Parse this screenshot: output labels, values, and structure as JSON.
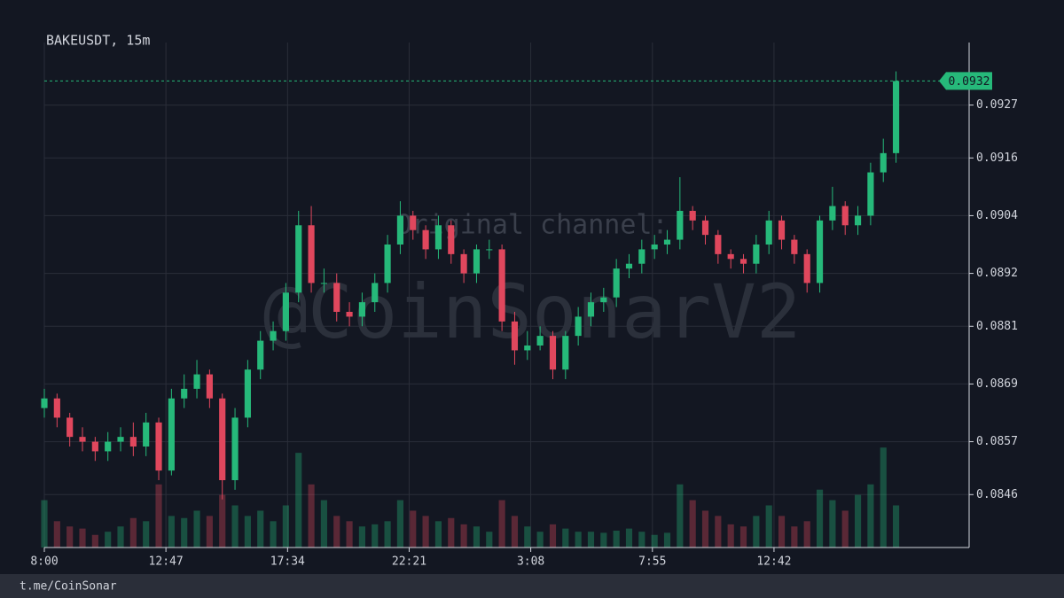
{
  "chart_data": {
    "type": "candlestick",
    "title": "BAKEUSDT, 15m",
    "watermark": "@CoinSonarV2",
    "watermark_caption": "Original channel:",
    "footer": "t.me/CoinSonar",
    "up_color": "#26b97a",
    "down_color": "#e0475d",
    "x": [
      0,
      2,
      4,
      6,
      8,
      10,
      12,
      14,
      16,
      18,
      20,
      22,
      24,
      26,
      28,
      30,
      32,
      34,
      36,
      38,
      40,
      42,
      44,
      46,
      48,
      50,
      52,
      54,
      56,
      58,
      60,
      62,
      64,
      66,
      68,
      70,
      72,
      74,
      76,
      78,
      80,
      82,
      84,
      86,
      88,
      90,
      92,
      94,
      96,
      98,
      100,
      102,
      104,
      106,
      108,
      110,
      112,
      114,
      116,
      118,
      120,
      122,
      124,
      126,
      128,
      130,
      132,
      134
    ],
    "open": [
      0.0864,
      0.0866,
      0.0862,
      0.0858,
      0.0857,
      0.0855,
      0.0857,
      0.0858,
      0.0856,
      0.0861,
      0.0851,
      0.0866,
      0.0868,
      0.0871,
      0.0866,
      0.0849,
      0.0862,
      0.0872,
      0.0878,
      0.088,
      0.0888,
      0.0902,
      0.089,
      0.089,
      0.0884,
      0.0883,
      0.0886,
      0.089,
      0.0898,
      0.0904,
      0.0901,
      0.0897,
      0.0902,
      0.0896,
      0.0892,
      0.0897,
      0.0897,
      0.0882,
      0.0876,
      0.0877,
      0.0879,
      0.0872,
      0.0879,
      0.0883,
      0.0886,
      0.0887,
      0.0893,
      0.0894,
      0.0897,
      0.0898,
      0.0899,
      0.0905,
      0.0903,
      0.09,
      0.0896,
      0.0895,
      0.0894,
      0.0898,
      0.0903,
      0.0899,
      0.0896,
      0.089,
      0.0903,
      0.0906,
      0.0902,
      0.0904,
      0.0913,
      0.0917
    ],
    "high": [
      0.0868,
      0.0867,
      0.0863,
      0.086,
      0.0858,
      0.0859,
      0.086,
      0.0861,
      0.0863,
      0.0862,
      0.0868,
      0.0871,
      0.0874,
      0.0872,
      0.0867,
      0.0864,
      0.0874,
      0.088,
      0.0882,
      0.089,
      0.0905,
      0.0906,
      0.0893,
      0.0892,
      0.0886,
      0.0888,
      0.0892,
      0.09,
      0.0907,
      0.0905,
      0.0902,
      0.0904,
      0.0903,
      0.0897,
      0.0898,
      0.0899,
      0.0898,
      0.0884,
      0.088,
      0.0881,
      0.088,
      0.088,
      0.0885,
      0.0888,
      0.0889,
      0.0895,
      0.0896,
      0.0899,
      0.09,
      0.0901,
      0.0912,
      0.0906,
      0.0904,
      0.0901,
      0.0897,
      0.0896,
      0.09,
      0.0905,
      0.0904,
      0.09,
      0.0897,
      0.0904,
      0.091,
      0.0907,
      0.0906,
      0.0915,
      0.092,
      0.0934
    ],
    "low": [
      0.0862,
      0.086,
      0.0856,
      0.0855,
      0.0853,
      0.0853,
      0.0855,
      0.0854,
      0.0854,
      0.0849,
      0.085,
      0.0864,
      0.0866,
      0.0864,
      0.0845,
      0.0847,
      0.086,
      0.087,
      0.0876,
      0.0878,
      0.0886,
      0.0888,
      0.0888,
      0.0882,
      0.0881,
      0.0881,
      0.0884,
      0.0888,
      0.0896,
      0.0899,
      0.0895,
      0.0895,
      0.0894,
      0.089,
      0.089,
      0.0895,
      0.088,
      0.0873,
      0.0874,
      0.0876,
      0.087,
      0.087,
      0.0877,
      0.0881,
      0.0884,
      0.0885,
      0.0891,
      0.0892,
      0.0895,
      0.0896,
      0.0897,
      0.0901,
      0.0898,
      0.0894,
      0.0893,
      0.0892,
      0.0892,
      0.0896,
      0.0897,
      0.0894,
      0.0888,
      0.0888,
      0.0901,
      0.09,
      0.09,
      0.0902,
      0.0911,
      0.0915
    ],
    "close": [
      0.0866,
      0.0862,
      0.0858,
      0.0857,
      0.0855,
      0.0857,
      0.0858,
      0.0856,
      0.0861,
      0.0851,
      0.0866,
      0.0868,
      0.0871,
      0.0866,
      0.0849,
      0.0862,
      0.0872,
      0.0878,
      0.088,
      0.0888,
      0.0902,
      0.089,
      0.089,
      0.0884,
      0.0883,
      0.0886,
      0.089,
      0.0898,
      0.0904,
      0.0901,
      0.0897,
      0.0902,
      0.0896,
      0.0892,
      0.0897,
      0.0897,
      0.0882,
      0.0876,
      0.0877,
      0.0879,
      0.0872,
      0.0879,
      0.0883,
      0.0886,
      0.0887,
      0.0893,
      0.0894,
      0.0897,
      0.0898,
      0.0899,
      0.0905,
      0.0903,
      0.09,
      0.0896,
      0.0895,
      0.0894,
      0.0898,
      0.0903,
      0.0899,
      0.0896,
      0.089,
      0.0903,
      0.0906,
      0.0902,
      0.0904,
      0.0913,
      0.0917,
      0.0932
    ],
    "volume": [
      45,
      25,
      20,
      18,
      12,
      15,
      20,
      28,
      25,
      60,
      30,
      28,
      35,
      30,
      50,
      40,
      30,
      35,
      25,
      40,
      90,
      60,
      45,
      30,
      25,
      20,
      22,
      25,
      45,
      35,
      30,
      25,
      28,
      22,
      20,
      15,
      45,
      30,
      20,
      15,
      22,
      18,
      15,
      15,
      14,
      16,
      18,
      15,
      12,
      14,
      60,
      45,
      35,
      30,
      22,
      20,
      30,
      40,
      30,
      20,
      25,
      55,
      45,
      35,
      50,
      60,
      95,
      40
    ],
    "last_price": 0.0932,
    "xlim": [
      0,
      145.5
    ],
    "xticks": [
      {
        "value": 0,
        "label": "8:00"
      },
      {
        "value": 19.13,
        "label": "12:47"
      },
      {
        "value": 38.27,
        "label": "17:34"
      },
      {
        "value": 57.4,
        "label": "22:21"
      },
      {
        "value": 76.53,
        "label": "3:08"
      },
      {
        "value": 95.67,
        "label": "7:55"
      },
      {
        "value": 114.8,
        "label": "12:42"
      }
    ],
    "ylim": [
      0.0835,
      0.094
    ],
    "yticks": [
      0.0927,
      0.0916,
      0.0904,
      0.0892,
      0.0881,
      0.0869,
      0.0857,
      0.0846
    ],
    "y2lim": [
      0,
      480
    ],
    "grid": true
  }
}
